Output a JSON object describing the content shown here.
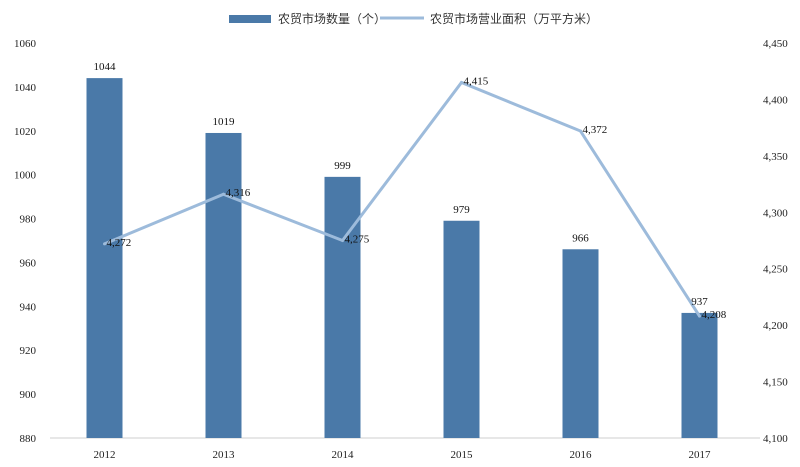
{
  "chart_data": {
    "type": "bar+line",
    "categories": [
      "2012",
      "2013",
      "2014",
      "2015",
      "2016",
      "2017"
    ],
    "series": [
      {
        "name": "农贸市场数量（个）",
        "type": "bar",
        "axis": "left",
        "color": "#4a79a8",
        "values": [
          1044,
          1019,
          999,
          979,
          966,
          937
        ],
        "labels": [
          "1044",
          "1019",
          "999",
          "979",
          "966",
          "937"
        ]
      },
      {
        "name": "农贸市场营业面积（万平方米）",
        "type": "line",
        "axis": "right",
        "color": "#9dbbdb",
        "values": [
          4272,
          4316,
          4275,
          4415,
          4372,
          4208
        ],
        "labels": [
          "4,272",
          "4,316",
          "4,275",
          "4,415",
          "4,372",
          "4,208"
        ]
      }
    ],
    "y_left": {
      "ylim": [
        880,
        1060
      ],
      "ticks": [
        880,
        900,
        920,
        940,
        960,
        980,
        1000,
        1020,
        1040,
        1060
      ],
      "tick_labels": [
        "880",
        "900",
        "920",
        "940",
        "960",
        "980",
        "1000",
        "1020",
        "1040",
        "1060"
      ]
    },
    "y_right": {
      "ylim": [
        4100,
        4450
      ],
      "ticks": [
        4100,
        4150,
        4200,
        4250,
        4300,
        4350,
        4400,
        4450
      ],
      "tick_labels": [
        "4,100",
        "4,150",
        "4,200",
        "4,250",
        "4,300",
        "4,350",
        "4,400",
        "4,450"
      ]
    },
    "legend_position": "top",
    "grid": false
  }
}
